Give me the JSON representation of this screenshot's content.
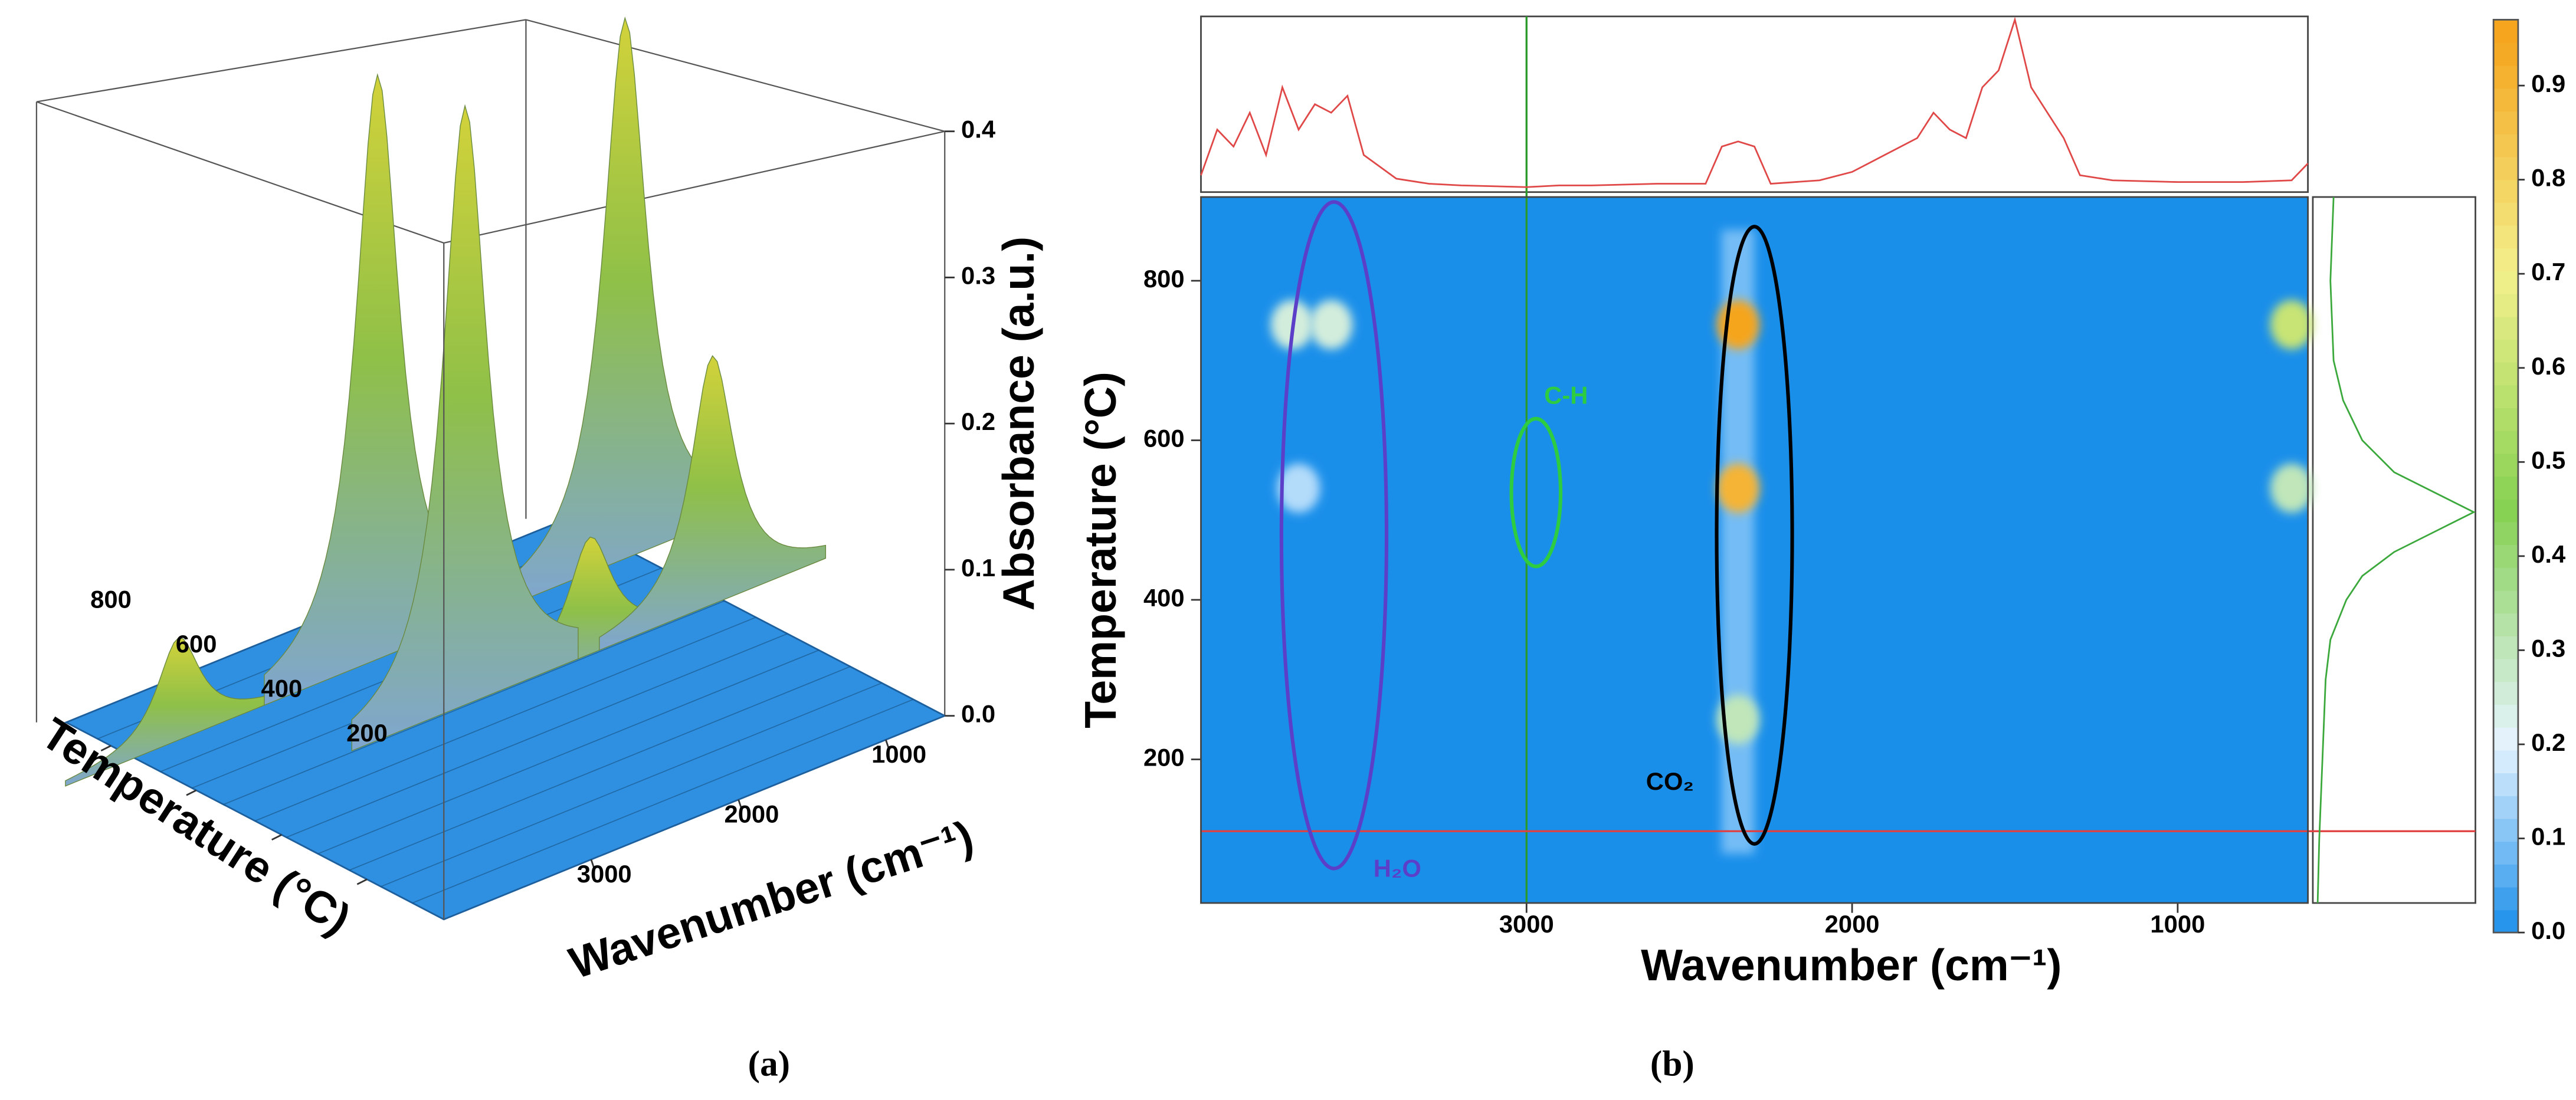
{
  "chart_data": [
    {
      "type": "surface3d",
      "caption": "(a)",
      "xlabel": "Wavenumber (cm⁻¹)",
      "ylabel": "Temperature (°C)",
      "zlabel": "Absorbance (a.u.)",
      "xlim": [
        4000,
        600
      ],
      "xticks": [
        1000,
        2000,
        3000
      ],
      "ylim": [
        20,
        905
      ],
      "yticks": [
        200,
        400,
        600,
        800
      ],
      "zlim": [
        0,
        0.4
      ],
      "zticks": [
        {
          "value": 0,
          "label": "0.0"
        },
        0.1,
        0.2,
        0.3,
        0.4
      ],
      "color": "#2f8fe0",
      "peaks": {
        "wavenumber": [
          3700,
          2350,
          670,
          1500,
          670,
          2350
        ],
        "temperature": [
          745,
          745,
          745,
          540,
          540,
          540
        ],
        "absorbance": [
          0.07,
          0.4,
          0.37,
          0.08,
          0.17,
          0.41
        ]
      }
    },
    {
      "type": "heatmap",
      "caption": "(b)",
      "xlabel": "Wavenumber (cm⁻¹)",
      "ylabel": "Temperature (°C)",
      "xlim": [
        4000,
        600
      ],
      "xticks": [
        3000,
        2000,
        1000
      ],
      "ylim": [
        20,
        905
      ],
      "yticks": [
        200,
        400,
        600,
        800
      ],
      "colorbar": {
        "lim": [
          0,
          0.97
        ],
        "ticks": [
          {
            "value": 0,
            "label": "0.0"
          },
          0.1,
          0.2,
          0.3,
          0.4,
          0.5,
          0.6,
          0.7,
          0.8,
          0.9
        ]
      },
      "colorscale": {
        "stops": [
          0,
          0.2,
          0.45,
          0.7,
          0.95
        ],
        "colors": [
          "#1a8fea",
          "#e6f4ff",
          "#86d152",
          "#f3f08c",
          "#f5a51e"
        ]
      },
      "hotspots": {
        "wavenumber": [
          2350,
          2350,
          650,
          650,
          3720,
          3600,
          3700,
          2350
        ],
        "temperature": [
          745,
          540,
          745,
          540,
          745,
          745,
          540,
          250
        ],
        "intensity": [
          0.95,
          0.9,
          0.6,
          0.3,
          0.25,
          0.25,
          0.15,
          0.3
        ]
      },
      "cursor": {
        "wavenumber": 3000,
        "temperature": 110,
        "xcolor": "#2a9a2a",
        "ycolor": "#e04040"
      },
      "spectrum": {
        "color": "#e04848",
        "ylim": [
          0,
          1
        ],
        "x": [
          4000,
          3950,
          3900,
          3850,
          3800,
          3750,
          3700,
          3650,
          3600,
          3550,
          3500,
          3400,
          3300,
          3200,
          3000,
          2900,
          2800,
          2600,
          2450,
          2400,
          2350,
          2300,
          2250,
          2100,
          2000,
          1900,
          1800,
          1750,
          1700,
          1650,
          1600,
          1550,
          1500,
          1450,
          1400,
          1350,
          1300,
          1200,
          1000,
          800,
          650,
          600
        ],
        "values": [
          0.08,
          0.35,
          0.25,
          0.45,
          0.2,
          0.6,
          0.35,
          0.5,
          0.45,
          0.55,
          0.2,
          0.06,
          0.03,
          0.02,
          0.01,
          0.02,
          0.02,
          0.03,
          0.03,
          0.25,
          0.28,
          0.25,
          0.03,
          0.05,
          0.1,
          0.2,
          0.3,
          0.45,
          0.35,
          0.3,
          0.6,
          0.7,
          1.0,
          0.6,
          0.45,
          0.3,
          0.08,
          0.05,
          0.04,
          0.04,
          0.05,
          0.15
        ]
      },
      "profile": {
        "color": "#3aa83a",
        "xlim": [
          0,
          1
        ],
        "temperature": [
          20,
          100,
          200,
          300,
          350,
          400,
          430,
          460,
          490,
          510,
          530,
          560,
          600,
          650,
          700,
          800,
          905
        ],
        "values": [
          0.02,
          0.03,
          0.05,
          0.07,
          0.1,
          0.2,
          0.3,
          0.5,
          0.8,
          1.0,
          0.8,
          0.5,
          0.3,
          0.18,
          0.12,
          0.1,
          0.12
        ]
      },
      "annotations": [
        {
          "text": "C-H",
          "color": "#2ecc40"
        },
        {
          "text": "CO₂",
          "color": "#000000"
        },
        {
          "text": "H₂O",
          "color": "#5b3fc8"
        }
      ]
    }
  ]
}
